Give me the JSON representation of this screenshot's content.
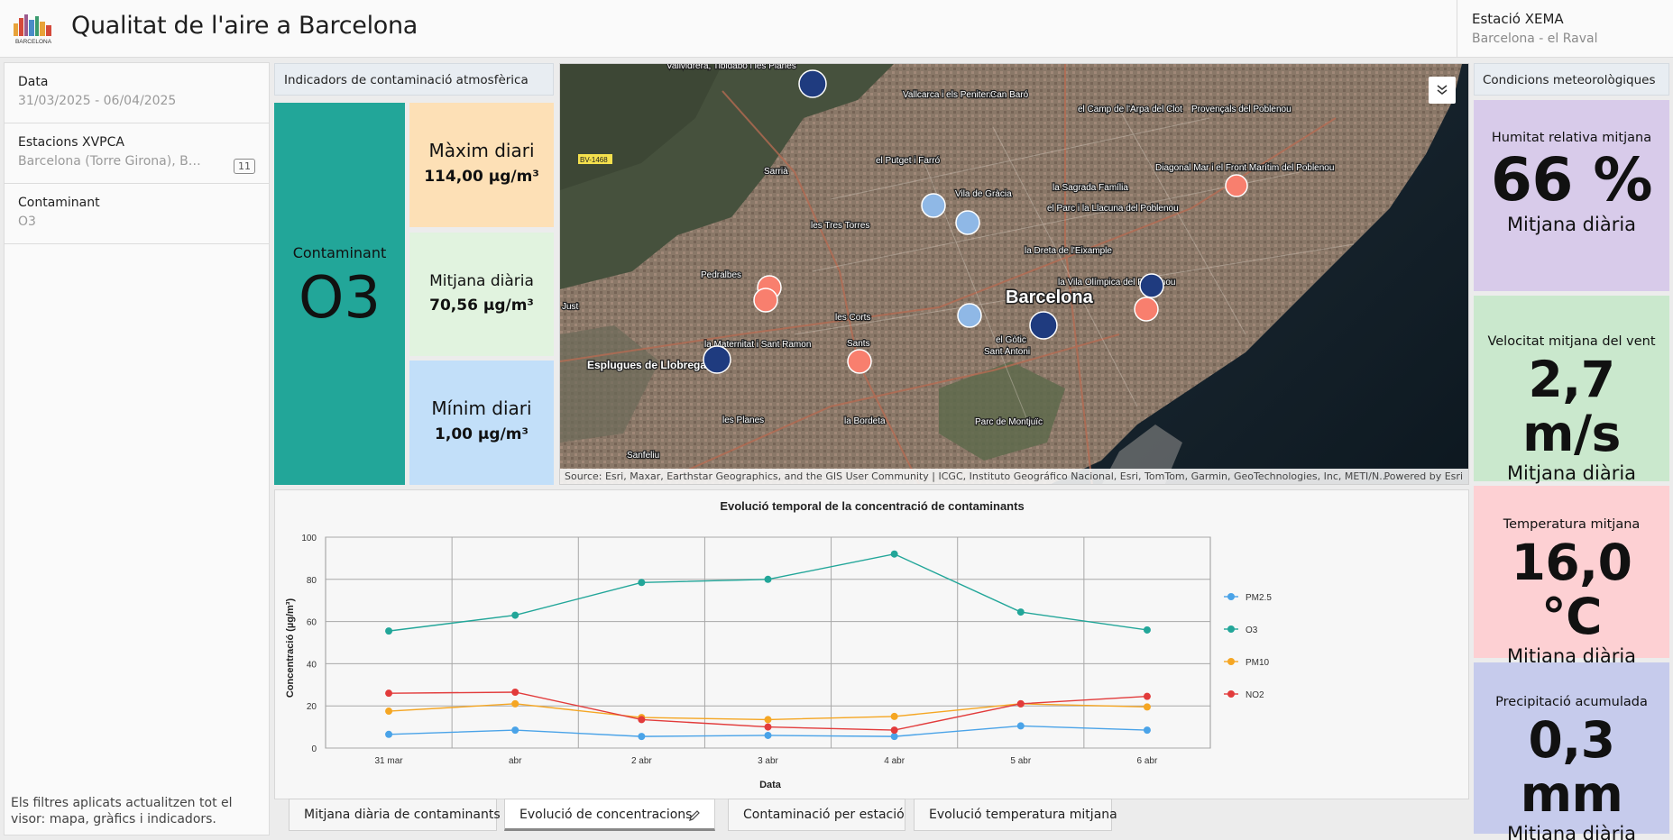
{
  "header": {
    "title": "Qualitat de l'aire a Barcelona",
    "logo_text": "BARCELONA",
    "station_title": "Estació XEMA",
    "station_name": "Barcelona - el Raval"
  },
  "filters": {
    "items": [
      {
        "label": "Data",
        "value": "31/03/2025 - 06/04/2025"
      },
      {
        "label": "Estacions XVPCA",
        "value": "Barcelona (Torre Girona), Barcelona (Eixample), Barcelona (Gràcia)",
        "count": "11"
      },
      {
        "label": "Contaminant",
        "value": "O3"
      }
    ],
    "note": "Els filtres aplicats actualitzen tot el visor: mapa, gràfics i indicadors."
  },
  "indicators": {
    "title": "Indicadors de contaminació atmosfèrica",
    "pollutant_label": "Contaminant",
    "pollutant": "O3",
    "max_label": "Màxim diari",
    "max_value": "114,00 µg/m³",
    "mean_label": "Mitjana diària",
    "mean_value": "70,56 µg/m³",
    "min_label": "Mínim diari",
    "min_value": "1,00 µg/m³",
    "colors": {
      "pollutant": "#22a699",
      "max": "#fde0b6",
      "mean": "#e1f3df",
      "min": "#c2dff9"
    }
  },
  "map": {
    "labels": [
      "Vallvidrera, Tibidabo i les Planes",
      "Vallcarca i els Penitents",
      "Can Baró",
      "el Camp de l'Arpa del Clot",
      "Provençals del Poblenou",
      "Sarrià",
      "el Putget i Farró",
      "Vila de Gràcia",
      "la Sagrada Família",
      "Diagonal Mar i el Front Marítim del Poblenou",
      "les Tres Torres",
      "el Parc i la Llacuna del Poblenou",
      "la Dreta de l'Eixample",
      "Pedralbes",
      "Barcelona",
      "la Vila Olímpica del Poblenou",
      "les Corts",
      "el Gòtic",
      "la Maternitat i Sant Ramon",
      "Sants",
      "Sant Antoni",
      "Esplugues de Llobregat",
      "les Planes",
      "la Bordeta",
      "Parc de Montjuïc",
      "Sanfeliu",
      "Just",
      "BV-1468"
    ],
    "attribution": "Source: Esri, Maxar, Earthstar Geographics, and the GIS User Community | ICGC, Instituto Geográfico Nacional, Esri, TomTom, Garmin, GeoTechnologies, Inc, METI/N...",
    "powered": "Powered by Esri",
    "marker_colors": {
      "navy": "#1f3b7f",
      "light_blue": "#8fb8e6",
      "salmon": "#f87f6e"
    }
  },
  "chart_data": {
    "type": "line",
    "title": "Evolució temporal de la concentració de contaminants",
    "xlabel": "Data",
    "ylabel": "Concentració (µg/m³)",
    "ylim": [
      0,
      100
    ],
    "yticks": [
      0,
      20,
      40,
      60,
      80,
      100
    ],
    "categories": [
      "31 mar",
      "abr",
      "2 abr",
      "3 abr",
      "4 abr",
      "5 abr",
      "6 abr"
    ],
    "grid": true,
    "legend_position": "right",
    "series": [
      {
        "name": "PM2.5",
        "color": "#4aa3e8",
        "values": [
          6.5,
          8.5,
          5.5,
          6.0,
          5.5,
          10.5,
          8.5
        ]
      },
      {
        "name": "O3",
        "color": "#22a699",
        "values": [
          55.5,
          63,
          78.5,
          80,
          92,
          64.5,
          56
        ]
      },
      {
        "name": "PM10",
        "color": "#f5a623",
        "values": [
          17.5,
          21,
          14.5,
          13.5,
          15,
          21,
          19.5
        ]
      },
      {
        "name": "NO2",
        "color": "#e23b3b",
        "values": [
          26,
          26.5,
          13.5,
          10,
          8.5,
          21,
          24.5
        ]
      }
    ]
  },
  "tabs": [
    {
      "label": "Mitjana diària de contaminants"
    },
    {
      "label": "Evolució de concentracions"
    },
    {
      "label": "Contaminació per estació"
    },
    {
      "label": "Evolució temperatura mitjana"
    }
  ],
  "meteo": {
    "title": "Condicions meteorològiques",
    "cards": [
      {
        "label": "Humitat relativa mitjana",
        "value": "66 %",
        "sub": "Mitjana diària",
        "color": "#d8cbea"
      },
      {
        "label": "Velocitat mitjana del vent",
        "value": "2,7 m/s",
        "sub": "Mitjana diària",
        "color": "#cae8cd"
      },
      {
        "label": "Temperatura mitjana",
        "value": "16,0 °C",
        "sub": "Mitjana diària",
        "color": "#fdd0d3"
      },
      {
        "label": "Precipitació acumulada",
        "value": "0,3 mm",
        "sub": "Mitjana diària",
        "color": "#c6cbec"
      }
    ]
  }
}
